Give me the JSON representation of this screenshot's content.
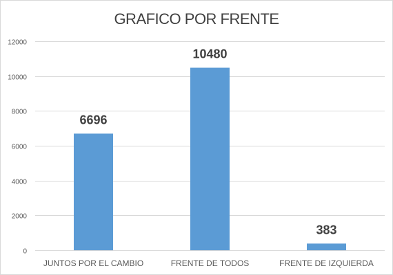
{
  "chart_data": {
    "type": "bar",
    "title": "GRAFICO POR FRENTE",
    "xlabel": "",
    "ylabel": "",
    "categories": [
      "JUNTOS POR EL CAMBIO",
      "FRENTE DE TODOS",
      "FRENTE DE IZQUIERDA"
    ],
    "values": [
      6696,
      10480,
      383
    ],
    "data_labels": [
      "6696",
      "10480",
      "383"
    ],
    "ylim": [
      0,
      12000
    ],
    "yticks": [
      0,
      2000,
      4000,
      6000,
      8000,
      10000,
      12000
    ],
    "ytick_labels": [
      "0",
      "2000",
      "4000",
      "6000",
      "8000",
      "10000",
      "12000"
    ],
    "grid": true,
    "legend": "none",
    "colors": {
      "bar": "#5b9bd5",
      "grid": "#d9d9d9",
      "text": "#595959",
      "title": "#404040",
      "data_label": "#404040"
    }
  }
}
